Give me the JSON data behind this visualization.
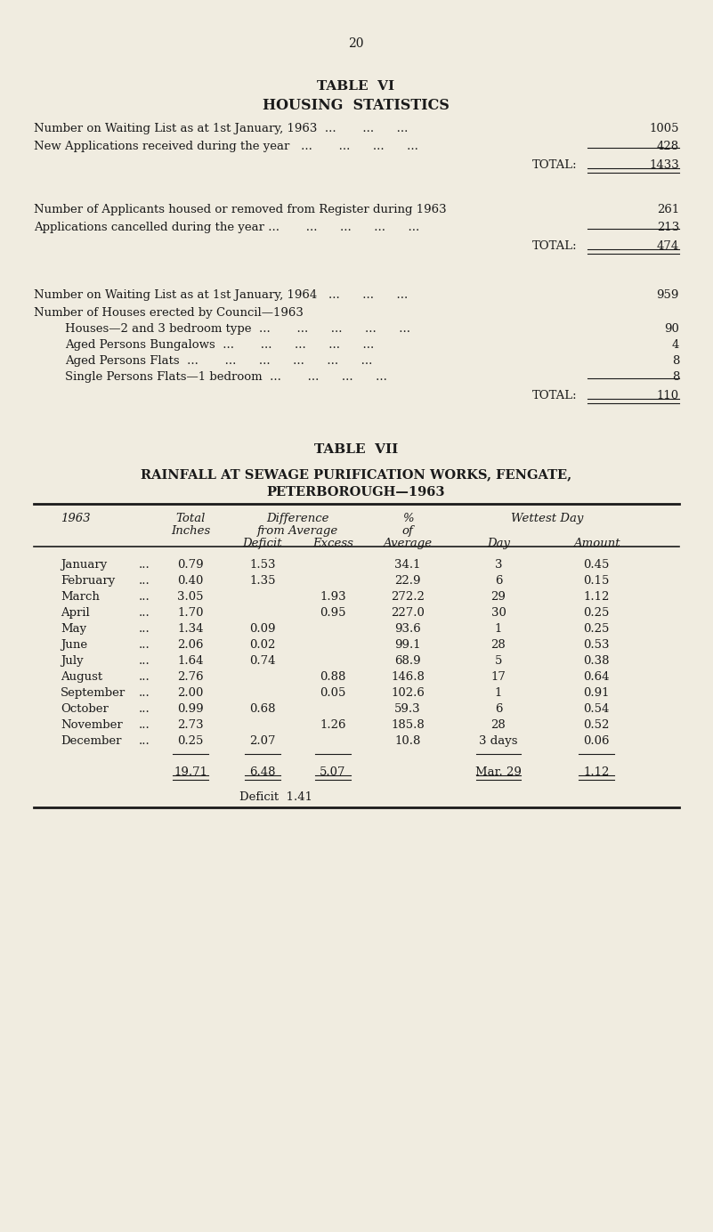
{
  "bg_color": "#f0ece0",
  "text_color": "#1a1a1a",
  "page_number": "20",
  "table6_title1": "TABLE  VI",
  "table6_title2": "HOUSING  STATISTICS",
  "table7_title1": "TABLE  VII",
  "table7_title2": "RAINFALL AT SEWAGE PURIFICATION WORKS, FENGATE,",
  "table7_title3": "PETERBOROUGH—1963",
  "table7_months": [
    {
      "month": "January",
      "dots": "...",
      "total": "0.79",
      "deficit": "1.53",
      "excess": "",
      "pct": "34.1",
      "day": "3",
      "amount": "0.45"
    },
    {
      "month": "February",
      "dots": "...",
      "total": "0.40",
      "deficit": "1.35",
      "excess": "",
      "pct": "22.9",
      "day": "6",
      "amount": "0.15"
    },
    {
      "month": "March",
      "dots": "...",
      "total": "3.05",
      "deficit": "",
      "excess": "1.93",
      "pct": "272.2",
      "day": "29",
      "amount": "1.12"
    },
    {
      "month": "April",
      "dots": "...",
      "total": "1.70",
      "deficit": "",
      "excess": "0.95",
      "pct": "227.0",
      "day": "30",
      "amount": "0.25"
    },
    {
      "month": "May",
      "dots": "...",
      "total": "1.34",
      "deficit": "0.09",
      "excess": "",
      "pct": "93.6",
      "day": "1",
      "amount": "0.25"
    },
    {
      "month": "June",
      "dots": "...",
      "total": "2.06",
      "deficit": "0.02",
      "excess": "",
      "pct": "99.1",
      "day": "28",
      "amount": "0.53"
    },
    {
      "month": "July",
      "dots": "...",
      "total": "1.64",
      "deficit": "0.74",
      "excess": "",
      "pct": "68.9",
      "day": "5",
      "amount": "0.38"
    },
    {
      "month": "August",
      "dots": "...",
      "total": "2.76",
      "deficit": "",
      "excess": "0.88",
      "pct": "146.8",
      "day": "17",
      "amount": "0.64"
    },
    {
      "month": "September",
      "dots": "...",
      "total": "2.00",
      "deficit": "",
      "excess": "0.05",
      "pct": "102.6",
      "day": "1",
      "amount": "0.91"
    },
    {
      "month": "October",
      "dots": "...",
      "total": "0.99",
      "deficit": "0.68",
      "excess": "",
      "pct": "59.3",
      "day": "6",
      "amount": "0.54"
    },
    {
      "month": "November",
      "dots": "...",
      "total": "2.73",
      "deficit": "",
      "excess": "1.26",
      "pct": "185.8",
      "day": "28",
      "amount": "0.52"
    },
    {
      "month": "December",
      "dots": "...",
      "total": "0.25",
      "deficit": "2.07",
      "excess": "",
      "pct": "10.8",
      "day": "3 days",
      "amount": "0.06"
    }
  ],
  "table7_totals": {
    "total": "19.71",
    "deficit": "6.48",
    "excess": "5.07",
    "day": "Mar. 29",
    "amount": "1.12"
  },
  "table7_deficit_note": "Deficit  1.41"
}
